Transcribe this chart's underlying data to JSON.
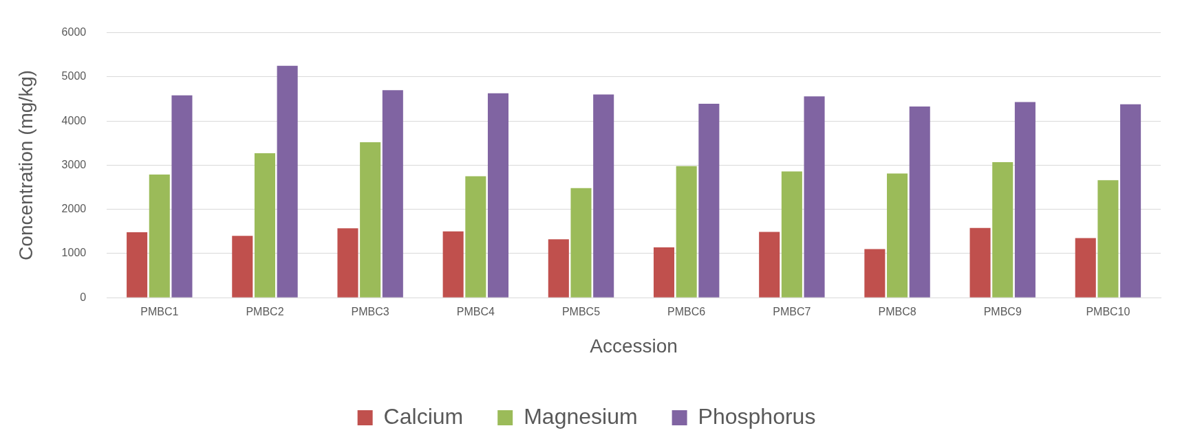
{
  "chart_data": {
    "type": "bar",
    "xlabel": "Accession",
    "ylabel": "Concentration (mg/kg)",
    "categories": [
      "PMBC1",
      "PMBC2",
      "PMBC3",
      "PMBC4",
      "PMBC5",
      "PMBC6",
      "PMBC7",
      "PMBC8",
      "PMBC9",
      "PMBC10"
    ],
    "series": [
      {
        "name": "Calcium",
        "color": "#c0504d",
        "values": [
          1480,
          1400,
          1570,
          1500,
          1320,
          1140,
          1490,
          1100,
          1580,
          1350
        ]
      },
      {
        "name": "Magnesium",
        "color": "#9bbb59",
        "values": [
          2790,
          3270,
          3520,
          2750,
          2480,
          2980,
          2860,
          2810,
          3070,
          2660
        ]
      },
      {
        "name": "Phosphorus",
        "color": "#8064a2",
        "values": [
          4580,
          5250,
          4700,
          4630,
          4600,
          4390,
          4560,
          4330,
          4430,
          4380
        ]
      }
    ],
    "ylim": [
      0,
      6000
    ],
    "yticks": [
      0,
      1000,
      2000,
      3000,
      4000,
      5000,
      6000
    ],
    "grid": "y",
    "legend": "bottom"
  }
}
